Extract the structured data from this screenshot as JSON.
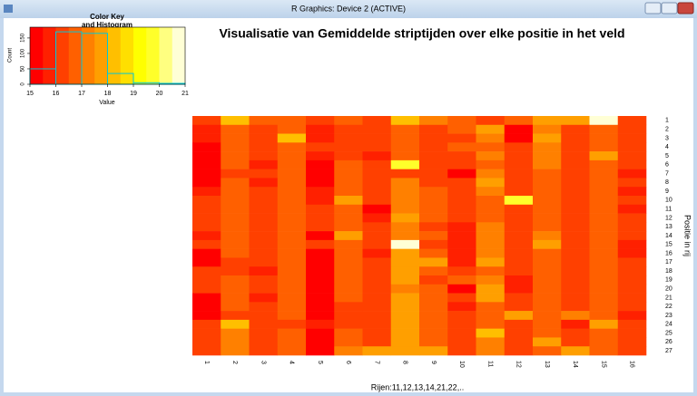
{
  "window": {
    "title": "R Graphics: Device 2 (ACTIVE)"
  },
  "chart_data": [
    {
      "type": "histogram",
      "title": [
        "Color Key",
        "and Histogram"
      ],
      "xlabel": "Value",
      "ylabel": "Count",
      "bins": [
        15,
        16,
        17,
        18,
        19,
        20,
        21
      ],
      "counts": [
        50,
        170,
        165,
        35,
        5,
        3
      ],
      "color": "#00c8d8",
      "xlim": [
        15,
        21
      ],
      "ylim": [
        0,
        185
      ],
      "xticks": [
        15,
        16,
        17,
        18,
        19,
        20,
        21
      ],
      "yticks": [
        0,
        50,
        100,
        150
      ],
      "colors": [
        "#FF0000",
        "#FF2000",
        "#FF4000",
        "#FF6000",
        "#FF8000",
        "#FF9F00",
        "#FFBF00",
        "#FFDF00",
        "#FFFF00",
        "#FFFF2A",
        "#FFFF80",
        "#FFFFD5"
      ]
    },
    {
      "type": "heatmap",
      "title": "Visualisatie van Gemiddelde striptijden over elke positie in het veld",
      "xlabel": "Rijen:11,12,13,14,21,22,..",
      "ylabel": "Positie in rij",
      "columns": [
        "1",
        "2",
        "3",
        "4",
        "5",
        "6",
        "7",
        "8",
        "9",
        "10",
        "11",
        "12",
        "13",
        "14",
        "15",
        "16"
      ],
      "rows": [
        "1",
        "2",
        "3",
        "4",
        "5",
        "6",
        "7",
        "8",
        "9",
        "10",
        "11",
        "12",
        "13",
        "14",
        "15",
        "16",
        "17",
        "18",
        "19",
        "20",
        "21",
        "22",
        "23",
        "24",
        "25",
        "26",
        "27"
      ],
      "values": [
        [
          16,
          18,
          16.5,
          16.8,
          16,
          16.5,
          16.3,
          18,
          17,
          16.5,
          16,
          16.5,
          17.8,
          17.8,
          20.8,
          16.2
        ],
        [
          15.8,
          16.7,
          16.2,
          16.8,
          15.9,
          16.1,
          16.2,
          16.9,
          16.3,
          16.5,
          17.5,
          15.3,
          17.2,
          16,
          16.7,
          16.1
        ],
        [
          15.8,
          16.9,
          16.2,
          18.1,
          15.9,
          16,
          16.2,
          16.9,
          16.3,
          16.2,
          17,
          15.2,
          17.8,
          16.3,
          16.8,
          16.1
        ],
        [
          15.2,
          16.9,
          16.1,
          16.8,
          16.3,
          16,
          16.1,
          16.9,
          16.2,
          16.6,
          16.9,
          16.1,
          17,
          16,
          16.8,
          16.2
        ],
        [
          15.2,
          16.9,
          16.3,
          16.8,
          15.9,
          16.2,
          15.6,
          16.8,
          16.3,
          16.4,
          17.4,
          16.1,
          17,
          16.2,
          17.6,
          16.1
        ],
        [
          15.2,
          16.7,
          15.5,
          16.8,
          15.3,
          16.6,
          16.3,
          19.5,
          16.3,
          16.3,
          16.8,
          16.2,
          17,
          16.2,
          16.8,
          16.4
        ],
        [
          15.2,
          16.4,
          16.3,
          16.8,
          15.4,
          16.7,
          16.2,
          16.3,
          16.3,
          15.4,
          17,
          16.1,
          16.8,
          16.4,
          16.9,
          15.6
        ],
        [
          15.3,
          16.8,
          15.6,
          16.8,
          15.3,
          16.5,
          16.2,
          17,
          16.1,
          16,
          17.5,
          16.1,
          16.9,
          16.4,
          16.9,
          16.2
        ],
        [
          15.6,
          16.7,
          16.3,
          16.8,
          15.6,
          16.5,
          16.2,
          17,
          16.8,
          16.3,
          17,
          16.2,
          16.8,
          16.1,
          16.8,
          15.7
        ],
        [
          16.2,
          16.8,
          16.2,
          16.8,
          15.9,
          17.7,
          16,
          17,
          16.6,
          16,
          16.9,
          19.8,
          16.8,
          16.3,
          16.8,
          16
        ],
        [
          16.2,
          16.8,
          16.3,
          16.8,
          16.2,
          16.8,
          15.4,
          17,
          16.8,
          16.3,
          16.8,
          16.1,
          16.9,
          16.2,
          16.8,
          15.9
        ],
        [
          16.2,
          16.8,
          16.1,
          16.8,
          16,
          16.9,
          15.6,
          17.6,
          16.5,
          16.3,
          16.8,
          16.1,
          16.9,
          16.4,
          16.8,
          16.1
        ],
        [
          16.2,
          16.8,
          16.4,
          16.8,
          16.2,
          16.9,
          16.2,
          17,
          16.4,
          15.6,
          17,
          16,
          16.9,
          16.3,
          16.8,
          16.1
        ],
        [
          15.5,
          16.8,
          16.2,
          16.8,
          15.4,
          17.6,
          16.2,
          17,
          16.5,
          15.6,
          17,
          16,
          17.3,
          16.2,
          16.8,
          16.4
        ],
        [
          16.2,
          16.6,
          16.4,
          16.8,
          16.2,
          16.9,
          16.3,
          20.8,
          16.4,
          15.6,
          17,
          16,
          17.8,
          16.3,
          16.9,
          15.6
        ],
        [
          15.3,
          16.8,
          16.2,
          16.8,
          15.4,
          16.8,
          15.5,
          17.6,
          16.8,
          15.7,
          17,
          16.1,
          16.9,
          16.3,
          16.9,
          15.9
        ],
        [
          15.3,
          16.1,
          16.3,
          16.8,
          15.4,
          16.8,
          16,
          17.6,
          17.6,
          15.5,
          17.8,
          16.1,
          16.9,
          16.2,
          16.9,
          16.2
        ],
        [
          16.2,
          16.4,
          15.6,
          16.8,
          15.3,
          16.8,
          16.2,
          17.8,
          16.8,
          16.4,
          16.8,
          16,
          16.9,
          16.3,
          16.9,
          16.2
        ],
        [
          16.2,
          16.8,
          16.2,
          16.8,
          15.3,
          16.8,
          16.2,
          17.6,
          16.4,
          16.5,
          17,
          15.8,
          16.9,
          16.3,
          16.9,
          16.2
        ],
        [
          16.3,
          16.8,
          16.3,
          16.8,
          15.3,
          16.7,
          16.2,
          17,
          16.8,
          15.4,
          17.6,
          15.7,
          16.9,
          16.1,
          16.9,
          16.2
        ],
        [
          15.2,
          16.8,
          15.5,
          16.8,
          15.3,
          16.8,
          16.2,
          17.6,
          16.8,
          16.2,
          17.5,
          16.1,
          16.9,
          16.2,
          16.9,
          16.2
        ],
        [
          15.2,
          16.6,
          16.2,
          16.8,
          15.3,
          16.4,
          16.2,
          17.6,
          16.5,
          15.6,
          16.8,
          16.1,
          16.9,
          16.2,
          16.9,
          16.1
        ],
        [
          15.3,
          16.4,
          16.2,
          16.8,
          15.3,
          16.2,
          16.3,
          17.8,
          16.6,
          16.3,
          16.7,
          17.8,
          16.9,
          17.4,
          16.9,
          15.6
        ],
        [
          16.3,
          18.2,
          16.2,
          16.1,
          15.7,
          16.3,
          16.3,
          17.7,
          16.8,
          16.2,
          16.8,
          16,
          16.9,
          15.9,
          17.8,
          16.2
        ],
        [
          16.3,
          17.2,
          16.2,
          16.8,
          15.4,
          16.6,
          16.3,
          17.7,
          16.8,
          16.3,
          18.3,
          16.1,
          16.9,
          16.1,
          16.9,
          16.2
        ],
        [
          16.3,
          17.2,
          16.2,
          16.8,
          15.4,
          16.7,
          16.1,
          17.7,
          16.8,
          16.3,
          17.2,
          16.2,
          17.6,
          16.3,
          16.9,
          16.2
        ],
        [
          16.3,
          17.2,
          16.2,
          16.8,
          15.4,
          17.3,
          17.5,
          17.7,
          17.6,
          16.3,
          17,
          16.1,
          16.9,
          17.6,
          16.9,
          16.2
        ]
      ]
    }
  ]
}
